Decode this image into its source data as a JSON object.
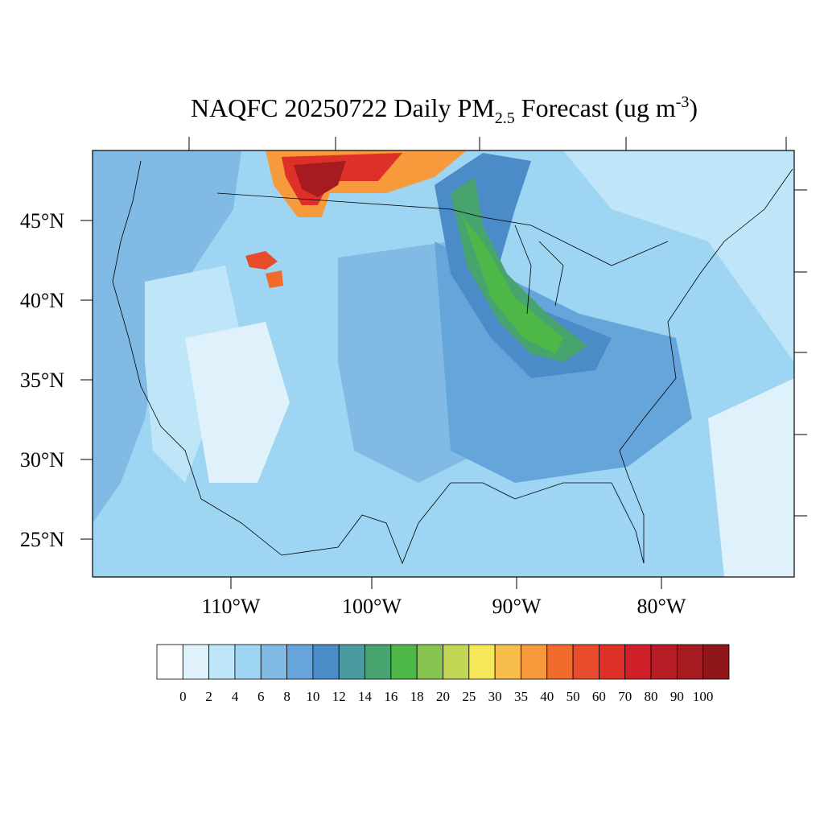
{
  "title": {
    "main": "NAQFC 20250722 Daily PM",
    "sub": "2.5",
    "mid": " Forecast (ug m",
    "sup": "-3",
    "end": ")"
  },
  "map": {
    "lat_labels": [
      "45°N",
      "40°N",
      "35°N",
      "30°N",
      "25°N"
    ],
    "lon_labels": [
      "110°W",
      "100°W",
      "90°W",
      "80°W"
    ]
  },
  "colorbar": {
    "colors": [
      "#ffffff",
      "#dff1fb",
      "#bfe6f8",
      "#9dd5f2",
      "#80bae5",
      "#66a5da",
      "#4a8bc8",
      "#4a9aa0",
      "#48a46e",
      "#4db848",
      "#86c44f",
      "#c2d656",
      "#f7e85a",
      "#f8bd4a",
      "#f69a3c",
      "#f06b2c",
      "#e74c2c",
      "#dd3127",
      "#d0202a",
      "#b81c25",
      "#a51b20",
      "#8f1719"
    ],
    "labels": [
      0,
      2,
      4,
      6,
      8,
      10,
      12,
      14,
      16,
      18,
      20,
      25,
      30,
      35,
      40,
      50,
      60,
      70,
      80,
      90,
      100
    ]
  }
}
